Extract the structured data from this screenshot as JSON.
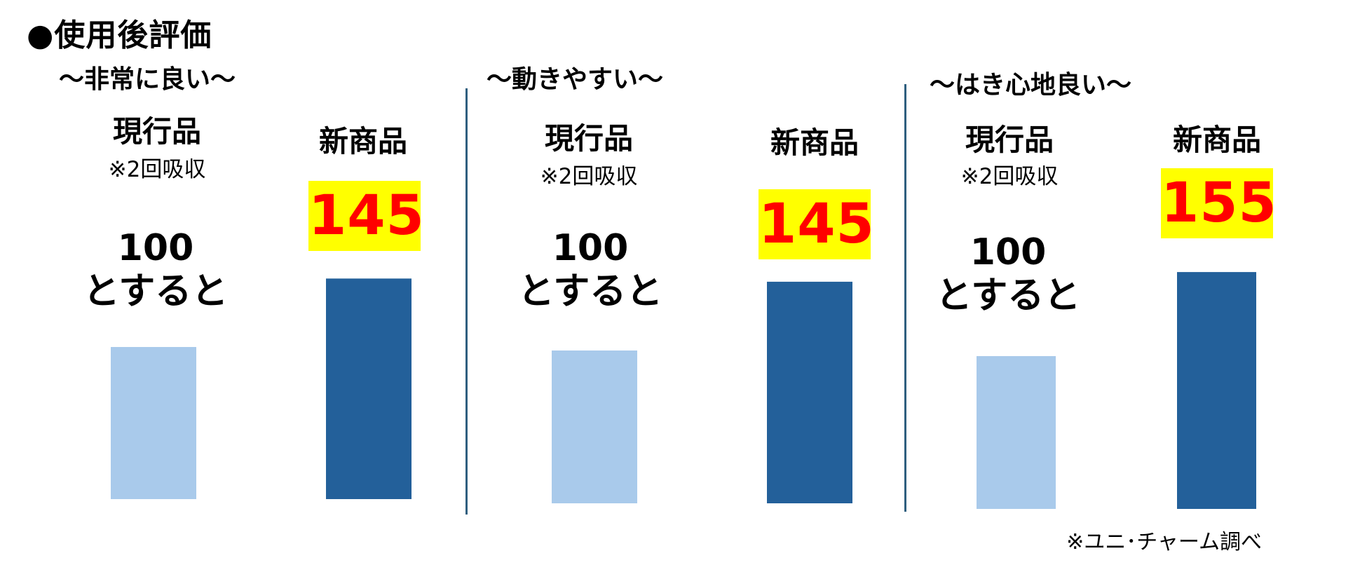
{
  "title": "●使用後評価",
  "source_note": "※ユニ･チャーム調べ",
  "colors": {
    "current": "#a9caeb",
    "new": "#23609a",
    "badge_bg": "#ffff00",
    "badge_text": "#ff0000",
    "divider": "#2f5f7f"
  },
  "panels": [
    {
      "subtitle": "〜非常に良い〜",
      "current_label": "現行品",
      "current_note": "※2回吸収",
      "base_value": "100",
      "base_suffix": "とすると",
      "new_label": "新商品",
      "new_value": "145"
    },
    {
      "subtitle": "〜動きやすい〜",
      "current_label": "現行品",
      "current_note": "※2回吸収",
      "base_value": "100",
      "base_suffix": "とすると",
      "new_label": "新商品",
      "new_value": "145"
    },
    {
      "subtitle": "〜はき心地良い〜",
      "current_label": "現行品",
      "current_note": "※2回吸収",
      "base_value": "100",
      "base_suffix": "とすると",
      "new_label": "新商品",
      "new_value": "155"
    }
  ],
  "chart_data": [
    {
      "type": "bar",
      "title": "〜非常に良い〜",
      "categories": [
        "現行品",
        "新商品"
      ],
      "values": [
        100,
        145
      ],
      "ylim": [
        0,
        160
      ]
    },
    {
      "type": "bar",
      "title": "〜動きやすい〜",
      "categories": [
        "現行品",
        "新商品"
      ],
      "values": [
        100,
        145
      ],
      "ylim": [
        0,
        160
      ]
    },
    {
      "type": "bar",
      "title": "〜はき心地良い〜",
      "categories": [
        "現行品",
        "新商品"
      ],
      "values": [
        100,
        155
      ],
      "ylim": [
        0,
        160
      ]
    }
  ]
}
